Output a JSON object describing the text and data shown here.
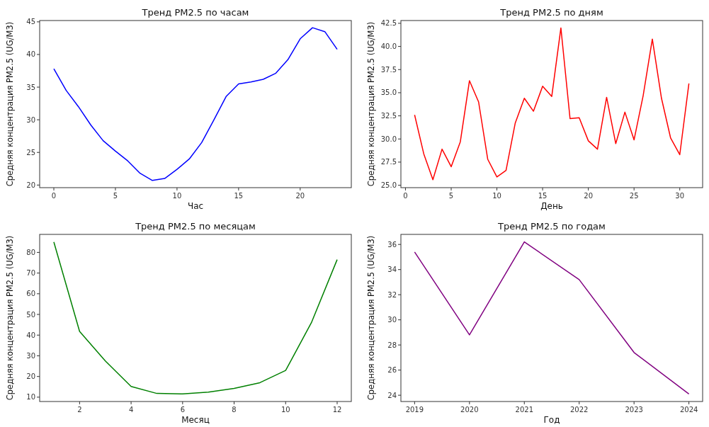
{
  "chart_data": [
    {
      "type": "line",
      "title": "Тренд PM2.5 по часам",
      "xlabel": "Час",
      "ylabel": "Средняя концентрация PM2.5 (UG/M3)",
      "x": [
        0,
        1,
        2,
        3,
        4,
        5,
        6,
        7,
        8,
        9,
        10,
        11,
        12,
        13,
        14,
        15,
        16,
        17,
        18,
        19,
        20,
        21,
        22,
        23
      ],
      "series": [
        {
          "color": "#0000ff",
          "values": [
            37.8,
            34.5,
            32.0,
            29.2,
            26.8,
            25.2,
            23.7,
            21.8,
            20.7,
            21.0,
            22.4,
            24.0,
            26.5,
            30.0,
            33.6,
            35.5,
            35.8,
            36.2,
            37.1,
            39.2,
            42.4,
            44.1,
            43.5,
            40.8
          ]
        }
      ],
      "xlim": [
        -1.15,
        24.15
      ],
      "ylim": [
        19.6,
        45.2
      ],
      "xticks": [
        0,
        5,
        10,
        15,
        20
      ],
      "yticks": [
        20,
        25,
        30,
        35,
        40,
        45
      ]
    },
    {
      "type": "line",
      "title": "Тренд PM2.5 по дням",
      "xlabel": "День",
      "ylabel": "Средняя концентрация PM2.5 (UG/M3)",
      "x": [
        1,
        2,
        3,
        4,
        5,
        6,
        7,
        8,
        9,
        10,
        11,
        12,
        13,
        14,
        15,
        16,
        17,
        18,
        19,
        20,
        21,
        22,
        23,
        24,
        25,
        26,
        27,
        28,
        29,
        30,
        31
      ],
      "series": [
        {
          "color": "#ff0000",
          "values": [
            32.6,
            28.4,
            25.6,
            28.9,
            27.0,
            29.7,
            36.3,
            34.0,
            27.8,
            25.9,
            26.6,
            31.7,
            34.4,
            33.0,
            35.7,
            34.6,
            42.0,
            32.2,
            32.3,
            29.8,
            28.9,
            34.5,
            29.5,
            32.9,
            29.9,
            34.7,
            40.8,
            34.4,
            30.1,
            28.3,
            36.0
          ]
        }
      ],
      "xlim": [
        -0.5,
        32.5
      ],
      "ylim": [
        24.74,
        42.8
      ],
      "xticks": [
        0,
        5,
        10,
        15,
        20,
        25,
        30
      ],
      "yticks": [
        {
          "value": 25,
          "label": "25.0"
        },
        {
          "value": 27.5,
          "label": "27.5"
        },
        {
          "value": 30,
          "label": "30.0"
        },
        {
          "value": 32.5,
          "label": "32.5"
        },
        {
          "value": 35,
          "label": "35.0"
        },
        {
          "value": 37.5,
          "label": "37.5"
        },
        {
          "value": 40,
          "label": "40.0"
        },
        {
          "value": 42.5,
          "label": "42.5"
        }
      ]
    },
    {
      "type": "line",
      "title": "Тренд PM2.5 по месяцам",
      "xlabel": "Месяц",
      "ylabel": "Средняя концентрация PM2.5 (UG/M3)",
      "x": [
        1,
        2,
        3,
        4,
        5,
        6,
        7,
        8,
        9,
        10,
        11,
        12
      ],
      "series": [
        {
          "color": "#008000",
          "values": [
            85,
            41.8,
            27.5,
            15.2,
            11.8,
            11.6,
            12.4,
            14.2,
            17.0,
            22.9,
            46,
            76.5
          ]
        }
      ],
      "xlim": [
        0.45,
        12.55
      ],
      "ylim": [
        7.9,
        88.7
      ],
      "xticks": [
        2,
        4,
        6,
        8,
        10,
        12
      ],
      "yticks": [
        10,
        20,
        30,
        40,
        50,
        60,
        70,
        80
      ]
    },
    {
      "type": "line",
      "title": "Тренд PM2.5 по годам",
      "xlabel": "Год",
      "ylabel": "Средняя концентрация PM2.5 (UG/M3)",
      "x": [
        2019,
        2020,
        2021,
        2022,
        2023,
        2024
      ],
      "series": [
        {
          "color": "#800080",
          "values": [
            35.4,
            28.8,
            36.2,
            33.2,
            27.4,
            24.1
          ]
        }
      ],
      "xlim": [
        2018.75,
        2024.25
      ],
      "ylim": [
        23.5,
        36.8
      ],
      "xticks": [
        2019,
        2020,
        2021,
        2022,
        2023,
        2024
      ],
      "yticks": [
        24,
        26,
        28,
        30,
        32,
        34,
        36
      ]
    }
  ]
}
